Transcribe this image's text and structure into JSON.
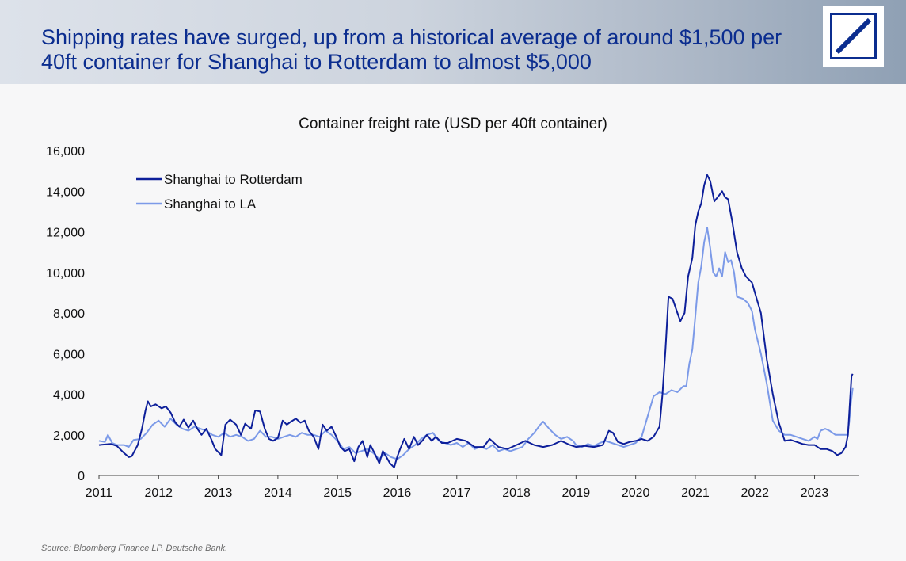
{
  "headline": "Shipping rates have surged, up from a historical average of around $1,500 per 40ft container for Shanghai to Rotterdam to almost $5,000",
  "source": "Source: Bloomberg Finance LP, Deutsche Bank.",
  "colors": {
    "rotterdam": "#0d1f9a",
    "la": "#7c9ae8",
    "headline": "#0b2d8f"
  },
  "logo_icon": "deutsche-bank-logo-icon",
  "chart_data": {
    "type": "line",
    "title": "Container freight rate (USD per 40ft container)",
    "xlim": [
      2011,
      2023.75
    ],
    "ylim": [
      0,
      16000
    ],
    "yticks": [
      0,
      2000,
      4000,
      6000,
      8000,
      10000,
      12000,
      14000,
      16000
    ],
    "ytick_labels": [
      "0",
      "2,000",
      "4,000",
      "6,000",
      "8,000",
      "10,000",
      "12,000",
      "14,000",
      "16,000"
    ],
    "xticks": [
      2011,
      2012,
      2013,
      2014,
      2015,
      2016,
      2017,
      2018,
      2019,
      2020,
      2021,
      2022,
      2023
    ],
    "xtick_labels": [
      "2011",
      "2012",
      "2013",
      "2014",
      "2015",
      "2016",
      "2017",
      "2018",
      "2019",
      "2020",
      "2021",
      "2022",
      "2023"
    ],
    "legend_position": "top-left",
    "grid": false,
    "series": [
      {
        "name": "Shanghai to Rotterdam",
        "color": "#0d1f9a",
        "points": [
          [
            2011.0,
            1500
          ],
          [
            2011.2,
            1550
          ],
          [
            2011.3,
            1450
          ],
          [
            2011.42,
            1100
          ],
          [
            2011.5,
            900
          ],
          [
            2011.55,
            950
          ],
          [
            2011.65,
            1500
          ],
          [
            2011.72,
            2300
          ],
          [
            2011.78,
            3200
          ],
          [
            2011.82,
            3650
          ],
          [
            2011.87,
            3400
          ],
          [
            2011.95,
            3500
          ],
          [
            2012.05,
            3300
          ],
          [
            2012.12,
            3400
          ],
          [
            2012.2,
            3100
          ],
          [
            2012.28,
            2600
          ],
          [
            2012.35,
            2400
          ],
          [
            2012.42,
            2750
          ],
          [
            2012.5,
            2350
          ],
          [
            2012.58,
            2700
          ],
          [
            2012.65,
            2300
          ],
          [
            2012.72,
            2000
          ],
          [
            2012.8,
            2300
          ],
          [
            2012.88,
            1800
          ],
          [
            2012.95,
            1300
          ],
          [
            2013.05,
            1000
          ],
          [
            2013.12,
            2500
          ],
          [
            2013.2,
            2750
          ],
          [
            2013.3,
            2500
          ],
          [
            2013.38,
            2000
          ],
          [
            2013.45,
            2550
          ],
          [
            2013.55,
            2300
          ],
          [
            2013.62,
            3200
          ],
          [
            2013.7,
            3150
          ],
          [
            2013.78,
            2300
          ],
          [
            2013.85,
            1800
          ],
          [
            2013.92,
            1700
          ],
          [
            2014.0,
            1850
          ],
          [
            2014.08,
            2700
          ],
          [
            2014.15,
            2500
          ],
          [
            2014.22,
            2650
          ],
          [
            2014.3,
            2800
          ],
          [
            2014.38,
            2600
          ],
          [
            2014.45,
            2700
          ],
          [
            2014.52,
            2200
          ],
          [
            2014.6,
            1900
          ],
          [
            2014.68,
            1300
          ],
          [
            2014.75,
            2500
          ],
          [
            2014.82,
            2200
          ],
          [
            2014.9,
            2400
          ],
          [
            2014.98,
            1900
          ],
          [
            2015.05,
            1400
          ],
          [
            2015.12,
            1200
          ],
          [
            2015.2,
            1300
          ],
          [
            2015.28,
            700
          ],
          [
            2015.35,
            1400
          ],
          [
            2015.42,
            1700
          ],
          [
            2015.5,
            900
          ],
          [
            2015.55,
            1500
          ],
          [
            2015.62,
            1100
          ],
          [
            2015.7,
            600
          ],
          [
            2015.76,
            1200
          ],
          [
            2015.82,
            900
          ],
          [
            2015.88,
            600
          ],
          [
            2015.95,
            400
          ],
          [
            2016.0,
            900
          ],
          [
            2016.05,
            1300
          ],
          [
            2016.12,
            1800
          ],
          [
            2016.2,
            1300
          ],
          [
            2016.28,
            1900
          ],
          [
            2016.35,
            1500
          ],
          [
            2016.42,
            1700
          ],
          [
            2016.5,
            2000
          ],
          [
            2016.58,
            1700
          ],
          [
            2016.65,
            1900
          ],
          [
            2016.75,
            1600
          ],
          [
            2016.85,
            1600
          ],
          [
            2017.0,
            1800
          ],
          [
            2017.15,
            1700
          ],
          [
            2017.3,
            1400
          ],
          [
            2017.45,
            1400
          ],
          [
            2017.55,
            1800
          ],
          [
            2017.7,
            1400
          ],
          [
            2017.85,
            1300
          ],
          [
            2018.0,
            1500
          ],
          [
            2018.15,
            1700
          ],
          [
            2018.3,
            1500
          ],
          [
            2018.45,
            1400
          ],
          [
            2018.6,
            1500
          ],
          [
            2018.75,
            1700
          ],
          [
            2018.9,
            1500
          ],
          [
            2019.0,
            1400
          ],
          [
            2019.15,
            1450
          ],
          [
            2019.3,
            1400
          ],
          [
            2019.45,
            1500
          ],
          [
            2019.55,
            2200
          ],
          [
            2019.62,
            2100
          ],
          [
            2019.7,
            1650
          ],
          [
            2019.8,
            1550
          ],
          [
            2019.9,
            1650
          ],
          [
            2020.0,
            1700
          ],
          [
            2020.1,
            1800
          ],
          [
            2020.2,
            1700
          ],
          [
            2020.3,
            1900
          ],
          [
            2020.4,
            2400
          ],
          [
            2020.45,
            4000
          ],
          [
            2020.5,
            6200
          ],
          [
            2020.55,
            8800
          ],
          [
            2020.62,
            8700
          ],
          [
            2020.7,
            8000
          ],
          [
            2020.75,
            7600
          ],
          [
            2020.82,
            8000
          ],
          [
            2020.88,
            9800
          ],
          [
            2020.95,
            10700
          ],
          [
            2021.0,
            12300
          ],
          [
            2021.05,
            13000
          ],
          [
            2021.1,
            13400
          ],
          [
            2021.15,
            14300
          ],
          [
            2021.2,
            14800
          ],
          [
            2021.25,
            14500
          ],
          [
            2021.32,
            13500
          ],
          [
            2021.4,
            13800
          ],
          [
            2021.45,
            14000
          ],
          [
            2021.5,
            13700
          ],
          [
            2021.55,
            13600
          ],
          [
            2021.62,
            12500
          ],
          [
            2021.7,
            11000
          ],
          [
            2021.78,
            10200
          ],
          [
            2021.85,
            9800
          ],
          [
            2021.95,
            9500
          ],
          [
            2022.0,
            9000
          ],
          [
            2022.1,
            8000
          ],
          [
            2022.2,
            5700
          ],
          [
            2022.3,
            4000
          ],
          [
            2022.4,
            2600
          ],
          [
            2022.5,
            1700
          ],
          [
            2022.6,
            1750
          ],
          [
            2022.7,
            1650
          ],
          [
            2022.8,
            1550
          ],
          [
            2022.9,
            1500
          ],
          [
            2023.0,
            1500
          ],
          [
            2023.1,
            1300
          ],
          [
            2023.2,
            1300
          ],
          [
            2023.3,
            1200
          ],
          [
            2023.38,
            1000
          ],
          [
            2023.45,
            1100
          ],
          [
            2023.52,
            1400
          ],
          [
            2023.56,
            2000
          ],
          [
            2023.59,
            3500
          ],
          [
            2023.62,
            4900
          ],
          [
            2023.64,
            5000
          ]
        ]
      },
      {
        "name": "Shanghai to LA",
        "color": "#7c9ae8",
        "points": [
          [
            2011.0,
            1700
          ],
          [
            2011.1,
            1650
          ],
          [
            2011.15,
            2000
          ],
          [
            2011.22,
            1600
          ],
          [
            2011.3,
            1500
          ],
          [
            2011.42,
            1500
          ],
          [
            2011.5,
            1400
          ],
          [
            2011.58,
            1750
          ],
          [
            2011.7,
            1800
          ],
          [
            2011.8,
            2100
          ],
          [
            2011.9,
            2500
          ],
          [
            2012.0,
            2700
          ],
          [
            2012.1,
            2400
          ],
          [
            2012.2,
            2800
          ],
          [
            2012.3,
            2500
          ],
          [
            2012.4,
            2300
          ],
          [
            2012.5,
            2200
          ],
          [
            2012.6,
            2400
          ],
          [
            2012.7,
            2300
          ],
          [
            2012.8,
            2200
          ],
          [
            2012.9,
            2000
          ],
          [
            2013.0,
            1900
          ],
          [
            2013.1,
            2100
          ],
          [
            2013.2,
            1900
          ],
          [
            2013.3,
            2000
          ],
          [
            2013.4,
            1900
          ],
          [
            2013.5,
            1700
          ],
          [
            2013.6,
            1800
          ],
          [
            2013.7,
            2200
          ],
          [
            2013.8,
            1900
          ],
          [
            2013.9,
            1900
          ],
          [
            2014.0,
            1800
          ],
          [
            2014.1,
            1900
          ],
          [
            2014.2,
            2000
          ],
          [
            2014.3,
            1900
          ],
          [
            2014.4,
            2100
          ],
          [
            2014.5,
            2000
          ],
          [
            2014.6,
            2000
          ],
          [
            2014.7,
            1900
          ],
          [
            2014.8,
            2200
          ],
          [
            2014.9,
            2000
          ],
          [
            2015.0,
            1700
          ],
          [
            2015.1,
            1300
          ],
          [
            2015.2,
            1400
          ],
          [
            2015.3,
            1100
          ],
          [
            2015.4,
            1200
          ],
          [
            2015.5,
            1300
          ],
          [
            2015.6,
            1100
          ],
          [
            2015.7,
            800
          ],
          [
            2015.8,
            1100
          ],
          [
            2015.9,
            900
          ],
          [
            2016.0,
            800
          ],
          [
            2016.1,
            1000
          ],
          [
            2016.2,
            1300
          ],
          [
            2016.3,
            1500
          ],
          [
            2016.4,
            1800
          ],
          [
            2016.5,
            2000
          ],
          [
            2016.6,
            2100
          ],
          [
            2016.7,
            1700
          ],
          [
            2016.8,
            1600
          ],
          [
            2016.9,
            1500
          ],
          [
            2017.0,
            1600
          ],
          [
            2017.1,
            1400
          ],
          [
            2017.2,
            1600
          ],
          [
            2017.3,
            1300
          ],
          [
            2017.4,
            1400
          ],
          [
            2017.5,
            1300
          ],
          [
            2017.6,
            1500
          ],
          [
            2017.7,
            1200
          ],
          [
            2017.8,
            1300
          ],
          [
            2017.9,
            1200
          ],
          [
            2018.0,
            1300
          ],
          [
            2018.1,
            1400
          ],
          [
            2018.2,
            1800
          ],
          [
            2018.3,
            2100
          ],
          [
            2018.4,
            2500
          ],
          [
            2018.45,
            2650
          ],
          [
            2018.55,
            2300
          ],
          [
            2018.65,
            2000
          ],
          [
            2018.75,
            1800
          ],
          [
            2018.85,
            1900
          ],
          [
            2018.95,
            1700
          ],
          [
            2019.0,
            1500
          ],
          [
            2019.1,
            1400
          ],
          [
            2019.2,
            1550
          ],
          [
            2019.3,
            1450
          ],
          [
            2019.4,
            1600
          ],
          [
            2019.5,
            1700
          ],
          [
            2019.6,
            1600
          ],
          [
            2019.7,
            1500
          ],
          [
            2019.8,
            1400
          ],
          [
            2019.9,
            1500
          ],
          [
            2020.0,
            1600
          ],
          [
            2020.1,
            1900
          ],
          [
            2020.2,
            2900
          ],
          [
            2020.3,
            3900
          ],
          [
            2020.4,
            4100
          ],
          [
            2020.5,
            4000
          ],
          [
            2020.6,
            4200
          ],
          [
            2020.7,
            4100
          ],
          [
            2020.8,
            4400
          ],
          [
            2020.85,
            4400
          ],
          [
            2020.9,
            5500
          ],
          [
            2020.95,
            6200
          ],
          [
            2021.0,
            7800
          ],
          [
            2021.05,
            9500
          ],
          [
            2021.1,
            10300
          ],
          [
            2021.15,
            11500
          ],
          [
            2021.2,
            12200
          ],
          [
            2021.25,
            11200
          ],
          [
            2021.3,
            10000
          ],
          [
            2021.35,
            9800
          ],
          [
            2021.4,
            10200
          ],
          [
            2021.45,
            9800
          ],
          [
            2021.5,
            11000
          ],
          [
            2021.55,
            10500
          ],
          [
            2021.6,
            10600
          ],
          [
            2021.65,
            10000
          ],
          [
            2021.7,
            8800
          ],
          [
            2021.8,
            8700
          ],
          [
            2021.88,
            8500
          ],
          [
            2021.95,
            8100
          ],
          [
            2022.0,
            7200
          ],
          [
            2022.1,
            6000
          ],
          [
            2022.2,
            4500
          ],
          [
            2022.3,
            2700
          ],
          [
            2022.4,
            2200
          ],
          [
            2022.5,
            2000
          ],
          [
            2022.6,
            2000
          ],
          [
            2022.7,
            1900
          ],
          [
            2022.8,
            1800
          ],
          [
            2022.9,
            1700
          ],
          [
            2023.0,
            1900
          ],
          [
            2023.05,
            1800
          ],
          [
            2023.1,
            2200
          ],
          [
            2023.18,
            2300
          ],
          [
            2023.25,
            2200
          ],
          [
            2023.35,
            2000
          ],
          [
            2023.45,
            2000
          ],
          [
            2023.55,
            2000
          ],
          [
            2023.58,
            2600
          ],
          [
            2023.61,
            3600
          ],
          [
            2023.64,
            4300
          ]
        ]
      }
    ]
  }
}
